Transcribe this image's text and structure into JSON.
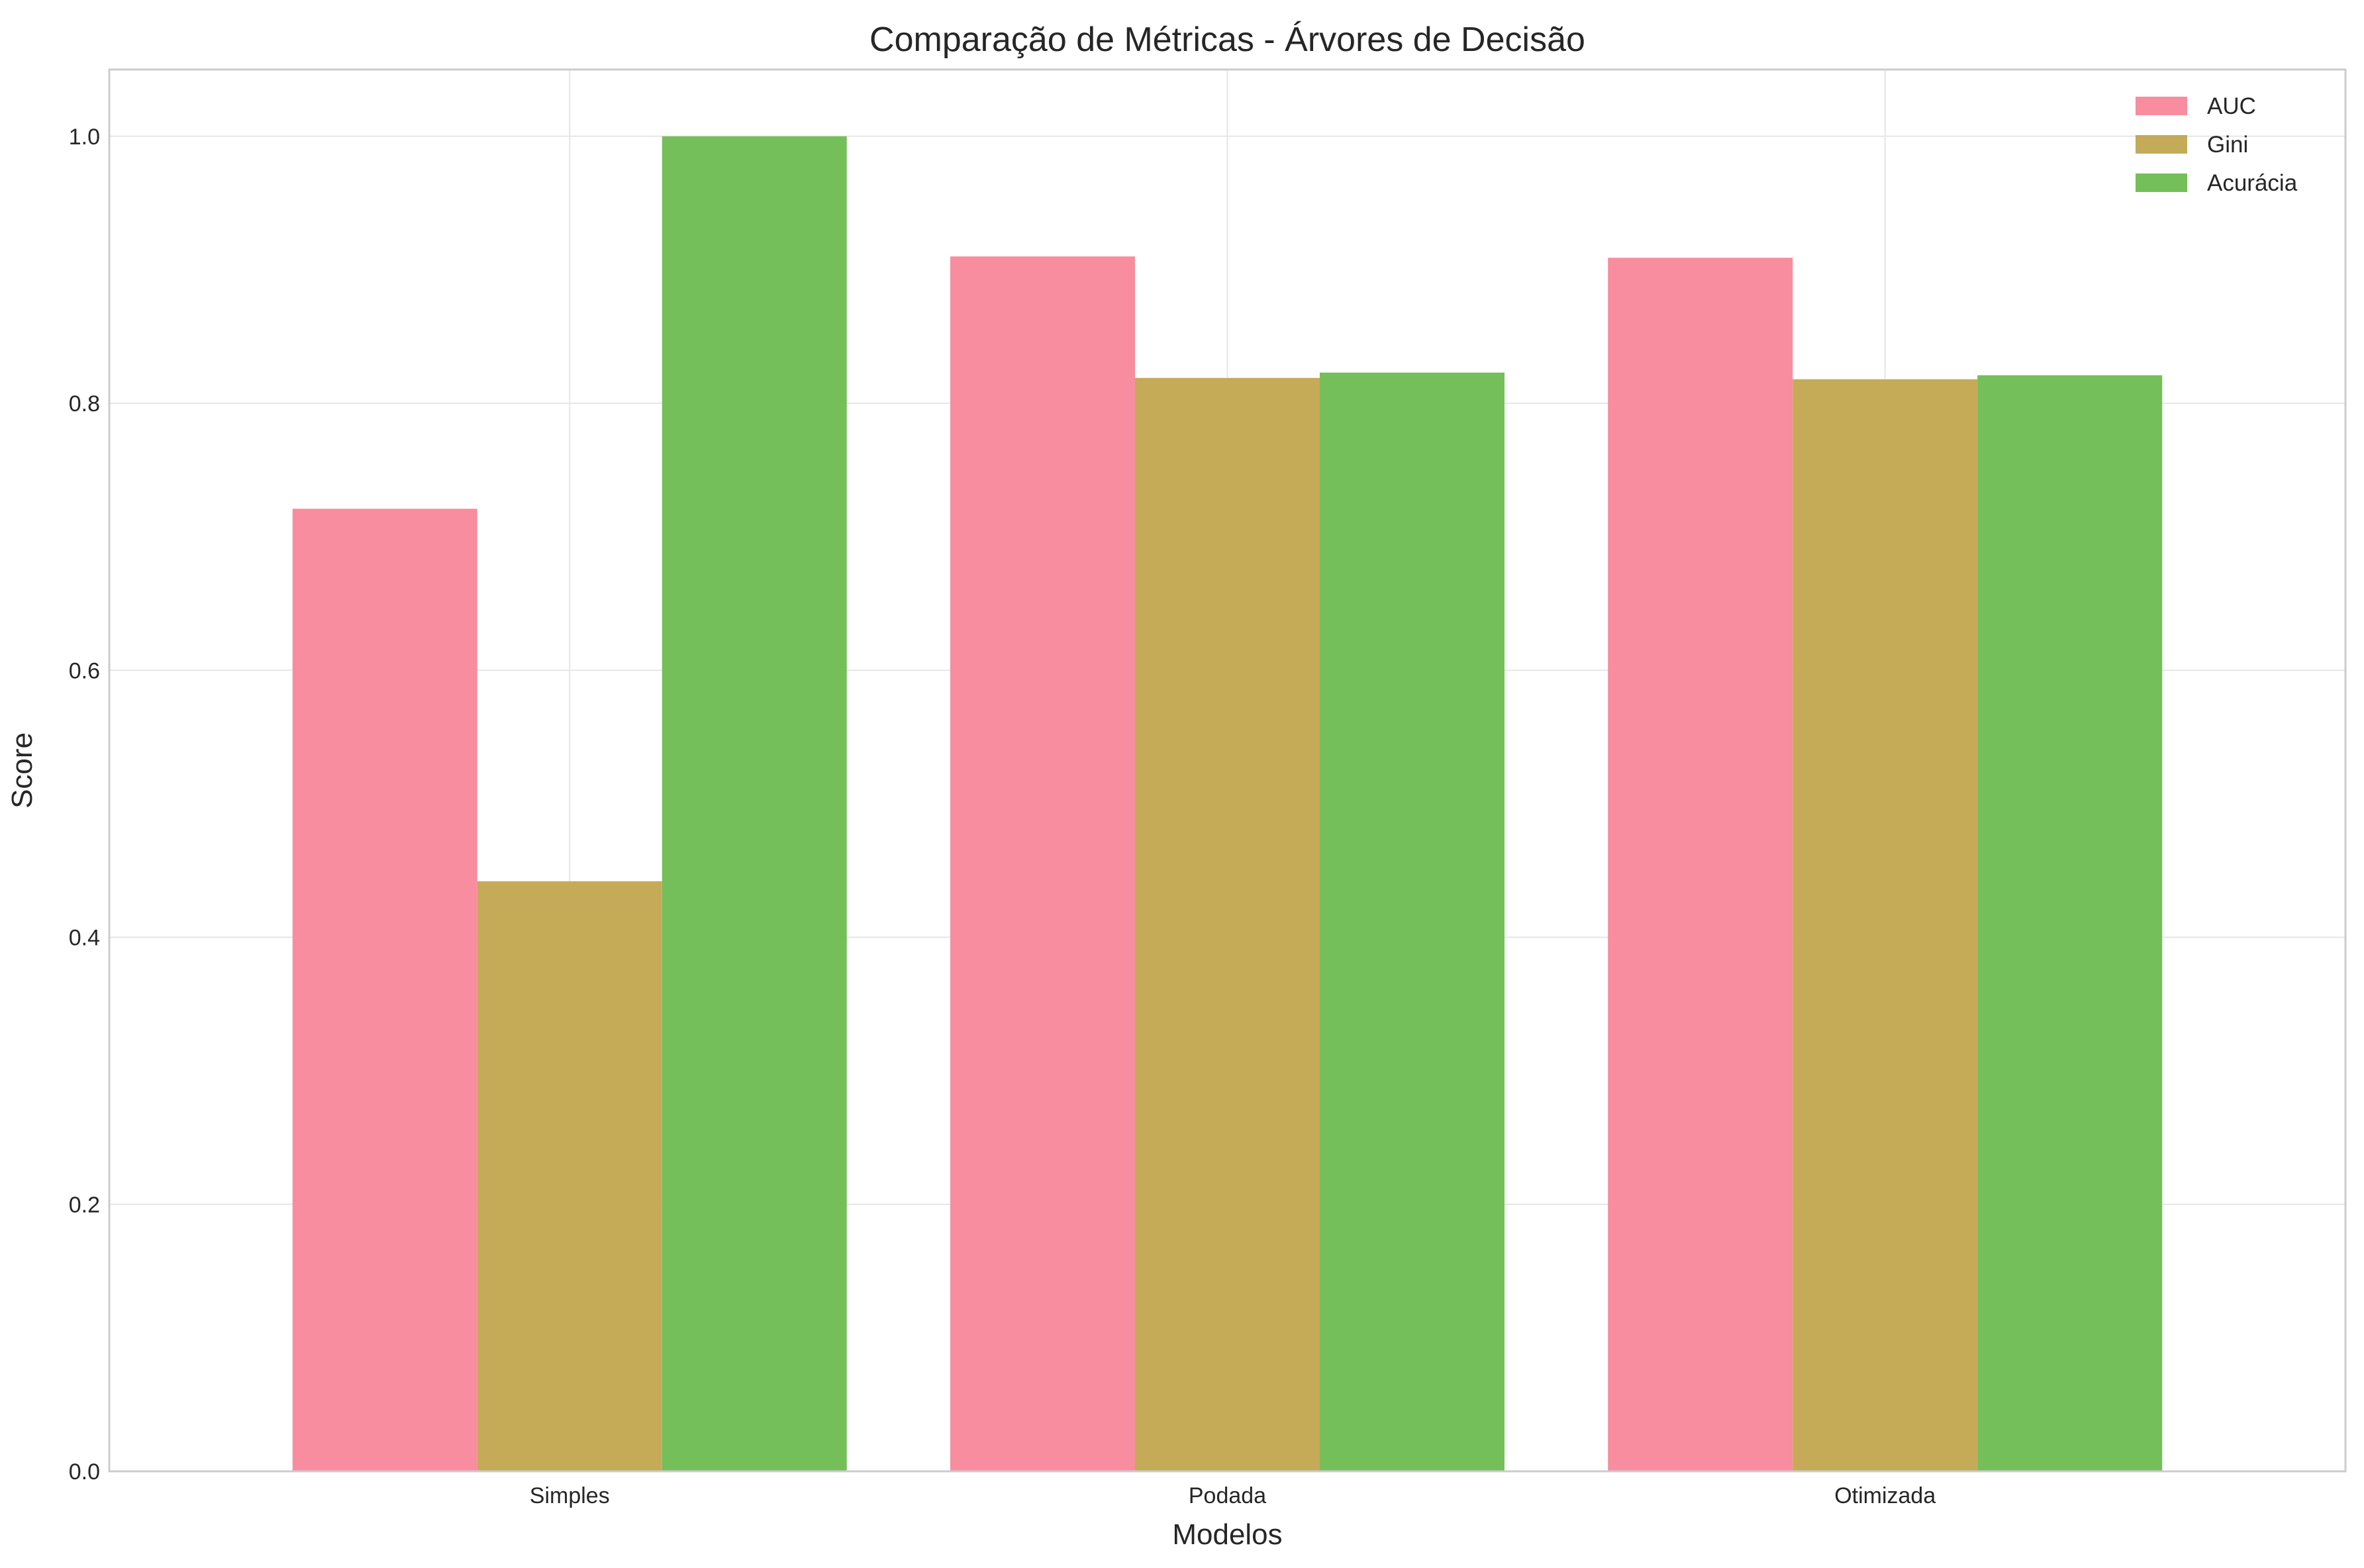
{
  "chart_data": {
    "type": "bar",
    "title": "Comparação de Métricas - Árvores de Decisão",
    "xlabel": "Modelos",
    "ylabel": "Score",
    "categories": [
      "Simples",
      "Podada",
      "Otimizada"
    ],
    "series": [
      {
        "name": "AUC",
        "values": [
          0.721,
          0.91,
          0.909
        ],
        "color": "#f78d9e"
      },
      {
        "name": "Gini",
        "values": [
          0.442,
          0.819,
          0.818
        ],
        "color": "#c5aa58"
      },
      {
        "name": "Acurácia",
        "values": [
          1.0,
          0.823,
          0.821
        ],
        "color": "#74bf5a"
      }
    ],
    "ylim": [
      0,
      1.05
    ],
    "yticks": [
      "0.0",
      "0.2",
      "0.4",
      "0.6",
      "0.8",
      "1.0"
    ],
    "grid": true,
    "legend_position": "top-right"
  }
}
